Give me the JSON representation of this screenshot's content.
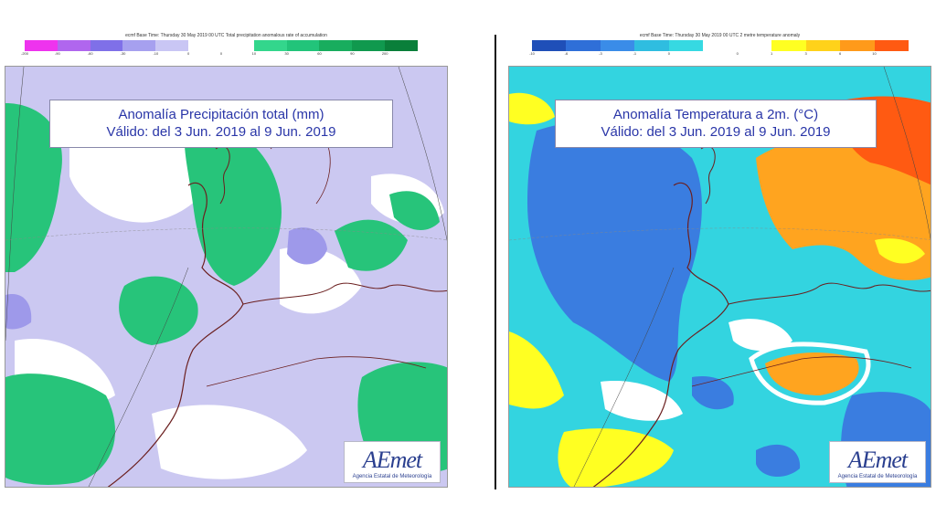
{
  "left_map": {
    "header": "ecmf  Base Time: Thursday 30 May 2019 00 UTC  Total precipitation anomalous rate of accumulation",
    "title_line1": "Anomalía Precipitación total (mm)",
    "title_line2": "Válido: del 3 Jun. 2019 al 9 Jun. 2019",
    "scale_colors": [
      "#ee33ee",
      "#b066ee",
      "#7f70e8",
      "#a6a0ef",
      "#c9c6f4",
      "#ffffff",
      "#ffffff",
      "#33d68c",
      "#22c47a",
      "#18ad5e",
      "#10994e",
      "#0a7f3a"
    ],
    "scale_ticks": [
      "-200",
      "-90",
      "-60",
      "-30",
      "-10",
      "0",
      "0",
      "10",
      "30",
      "60",
      "90",
      "200"
    ],
    "colors": {
      "dry": "#cbc8f1",
      "dry_strong": "#9e99ea",
      "wet": "#27c47a",
      "land_outline": "#6b1f1f"
    }
  },
  "right_map": {
    "header": "ecmf  Base Time: Thursday 30 May 2019 00 UTC  2 metre temperature anomaly",
    "title_line1": "Anomalía Temperatura a 2m. (°C)",
    "title_line2": "Válido: del 3 Jun. 2019 al 9 Jun. 2019",
    "scale_colors": [
      "#1f4fb8",
      "#2f6fd8",
      "#3a8ce8",
      "#2fbde0",
      "#36d9e2",
      "#ffffff",
      "#ffffff",
      "#ffff22",
      "#ffd21a",
      "#ff9a1a",
      "#ff5a12"
    ],
    "scale_ticks": [
      "-10",
      "-6",
      "-3",
      "-1",
      "0",
      "",
      "0",
      "1",
      "3",
      "6",
      "10"
    ],
    "colors": {
      "cold": "#3a7de0",
      "cool": "#33d4e0",
      "warm_light": "#ffff22",
      "warm": "#ffa41f",
      "hot": "#ff5a12",
      "land_outline": "#6b1f1f"
    }
  },
  "logo": {
    "mark": "AEmet",
    "subtitle": "Agencia Estatal de Meteorología"
  }
}
